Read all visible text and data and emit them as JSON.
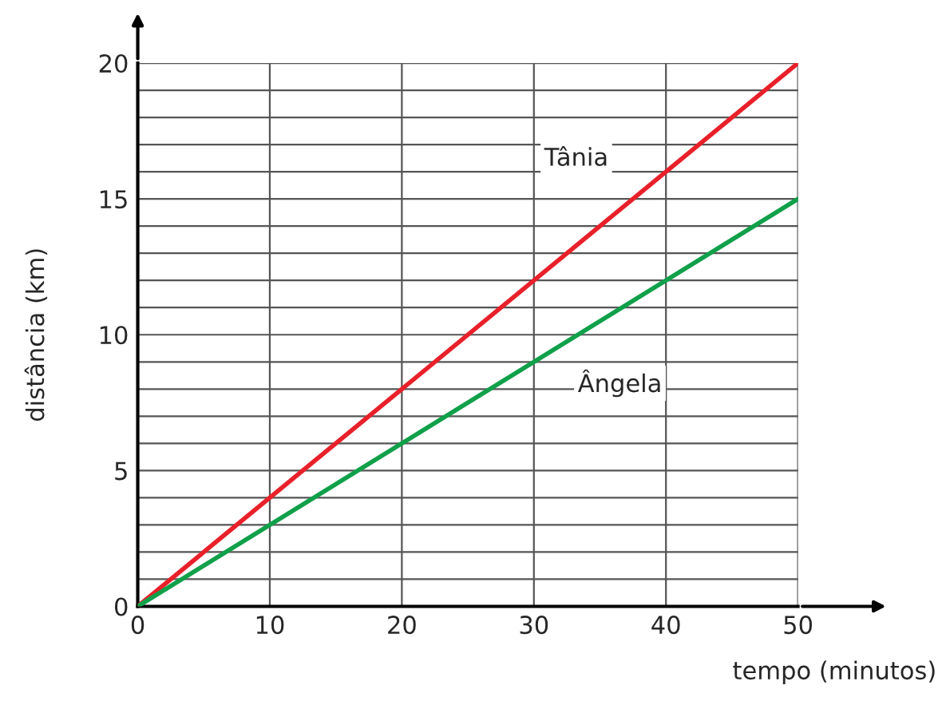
{
  "chart_data": {
    "type": "line",
    "xlabel": "tempo (minutos)",
    "ylabel": "distância (km)",
    "x": [
      0,
      50
    ],
    "series": [
      {
        "name": "Tânia",
        "color": "#e8202a",
        "values": [
          0,
          20
        ]
      },
      {
        "name": "Ângela",
        "color": "#10a04a",
        "values": [
          0,
          15
        ]
      }
    ],
    "xlim": [
      0,
      50
    ],
    "ylim": [
      0,
      20
    ],
    "xticks": [
      0,
      10,
      20,
      30,
      40,
      50
    ],
    "yticks": [
      0,
      {
        "value": 1,
        "label": null
      },
      {
        "value": 2,
        "label": null
      },
      {
        "value": 3,
        "label": null
      },
      {
        "value": 4,
        "label": null
      },
      5,
      {
        "value": 6,
        "label": null
      },
      {
        "value": 7,
        "label": null
      },
      {
        "value": 8,
        "label": null
      },
      {
        "value": 9,
        "label": null
      },
      10,
      {
        "value": 11,
        "label": null
      },
      {
        "value": 12,
        "label": null
      },
      {
        "value": 13,
        "label": null
      },
      {
        "value": 14,
        "label": null
      },
      15,
      {
        "value": 16,
        "label": null
      },
      {
        "value": 17,
        "label": null
      },
      {
        "value": 18,
        "label": null
      },
      {
        "value": 19,
        "label": null
      },
      20
    ],
    "grid": true,
    "marker": "none",
    "line_style": "solid"
  }
}
